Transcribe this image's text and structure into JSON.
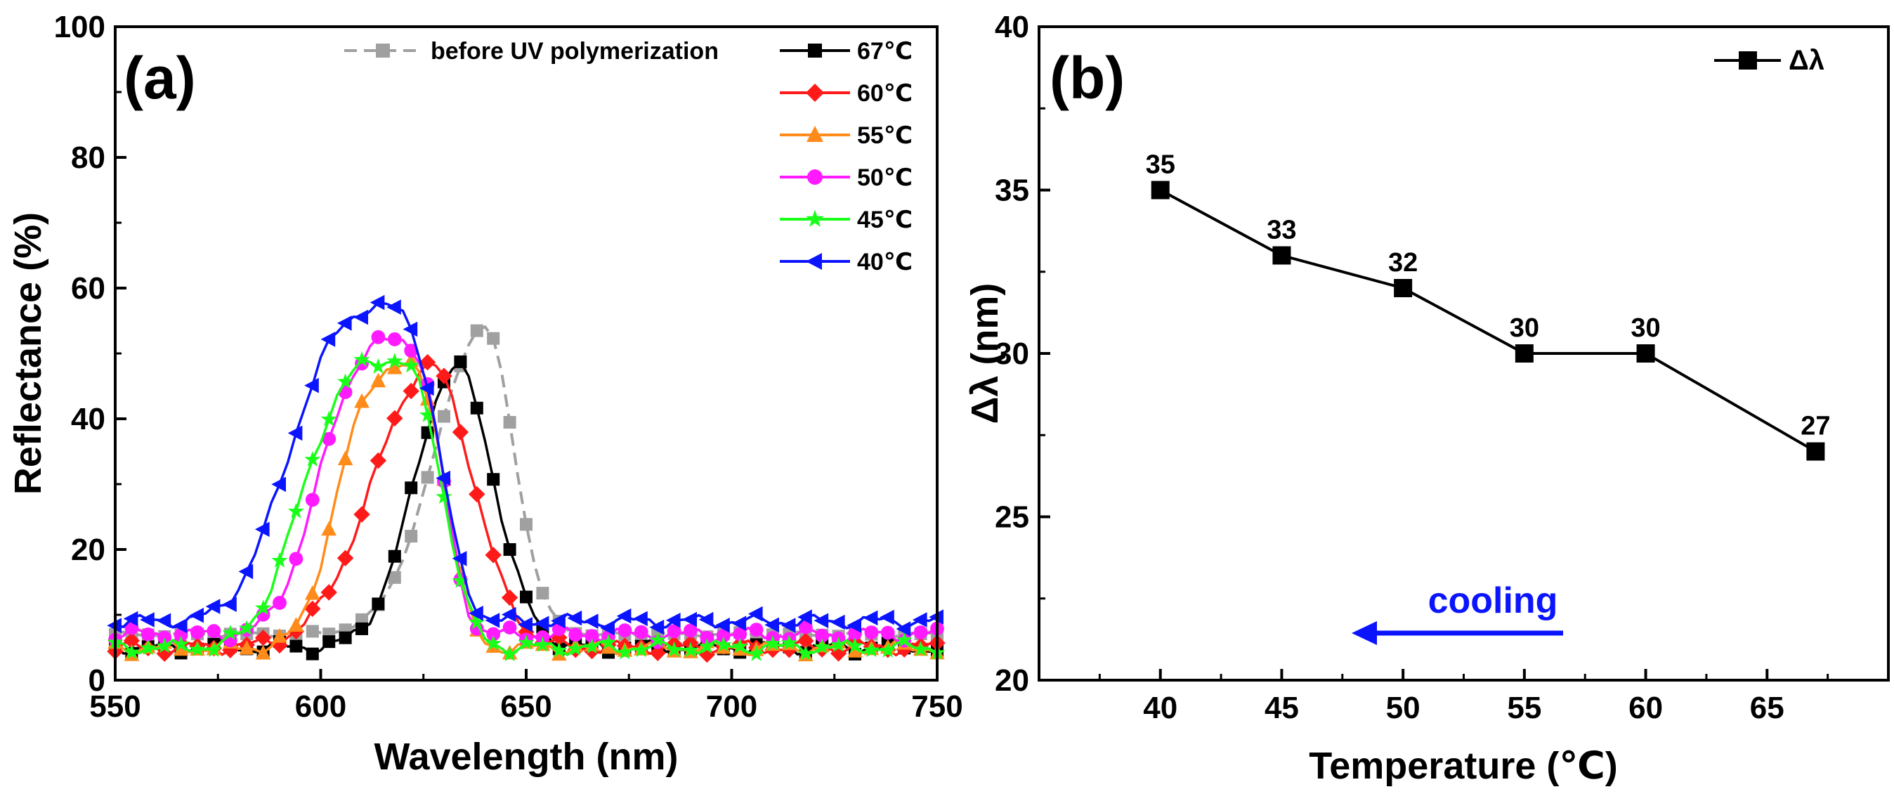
{
  "figure": {
    "colors": {
      "uv": "#a0a0a0",
      "t67": "#000000",
      "t60": "#ff1a1a",
      "t55": "#ff8c1a",
      "t50": "#ff1aff",
      "t45": "#1aff1a",
      "t40": "#0a14ff",
      "cooling": "#0a14ff"
    }
  },
  "chart_data": [
    {
      "panel": "(a)",
      "type": "line",
      "xlabel": "Wavelength (nm)",
      "ylabel": "Reflectance (%)",
      "xlim": [
        550,
        750
      ],
      "ylim": [
        0,
        100
      ],
      "xticks": [
        "550",
        "600",
        "650",
        "700",
        "750"
      ],
      "yticks": [
        "0",
        "20",
        "40",
        "60",
        "80",
        "100"
      ],
      "series": [
        {
          "name": "before UV polymerization",
          "style": "dashed",
          "marker": "square",
          "color_key": "uv",
          "peak_center": 640,
          "peak_value": 54,
          "width_left": 12,
          "width_right": 7,
          "exponent": 2,
          "baseline": 7
        },
        {
          "name": "67℃",
          "marker": "square",
          "color_key": "t67",
          "peak_center": 633,
          "peak_value": 48,
          "width_left": 10,
          "width_right": 9,
          "exponent": 2,
          "baseline": 5
        },
        {
          "name": "60℃",
          "marker": "diamond",
          "color_key": "t60",
          "peak_center": 627,
          "peak_value": 48,
          "width_left": 14,
          "width_right": 10,
          "exponent": 2,
          "baseline": 5
        },
        {
          "name": "55℃",
          "marker": "triangle",
          "color_key": "t55",
          "peak_center": 620,
          "peak_value": 48,
          "width_left": 15,
          "width_right": 10,
          "exponent": 3,
          "baseline": 5
        },
        {
          "name": "50℃",
          "marker": "circle",
          "color_key": "t50",
          "peak_center": 619,
          "peak_value": 52,
          "width_left": 18,
          "width_right": 10,
          "exponent": 3,
          "baseline": 7
        },
        {
          "name": "45℃",
          "marker": "star",
          "color_key": "t45",
          "peak_center": 617,
          "peak_value": 49,
          "width_left": 20,
          "width_right": 12,
          "exponent": 3,
          "baseline": 5
        },
        {
          "name": "40℃",
          "marker": "triangle-left",
          "color_key": "t40",
          "peak_center": 616,
          "peak_value": 57,
          "width_left": 22,
          "width_right": 12,
          "exponent": 3,
          "baseline": 9
        }
      ]
    },
    {
      "panel": "(b)",
      "type": "line",
      "xlabel": "Temperature (℃)",
      "ylabel": "Δλ (nm)",
      "xlim": [
        35,
        70
      ],
      "ylim": [
        20,
        40
      ],
      "xticks": [
        "40",
        "45",
        "50",
        "55",
        "60",
        "65"
      ],
      "yticks": [
        "20",
        "25",
        "30",
        "35",
        "40"
      ],
      "legend": "Δλ",
      "x": [
        40,
        45,
        50,
        55,
        60,
        67
      ],
      "y": [
        35,
        33,
        32,
        30,
        30,
        27
      ],
      "point_labels": [
        "35",
        "33",
        "32",
        "30",
        "30",
        "27"
      ],
      "annotation": "cooling"
    }
  ]
}
